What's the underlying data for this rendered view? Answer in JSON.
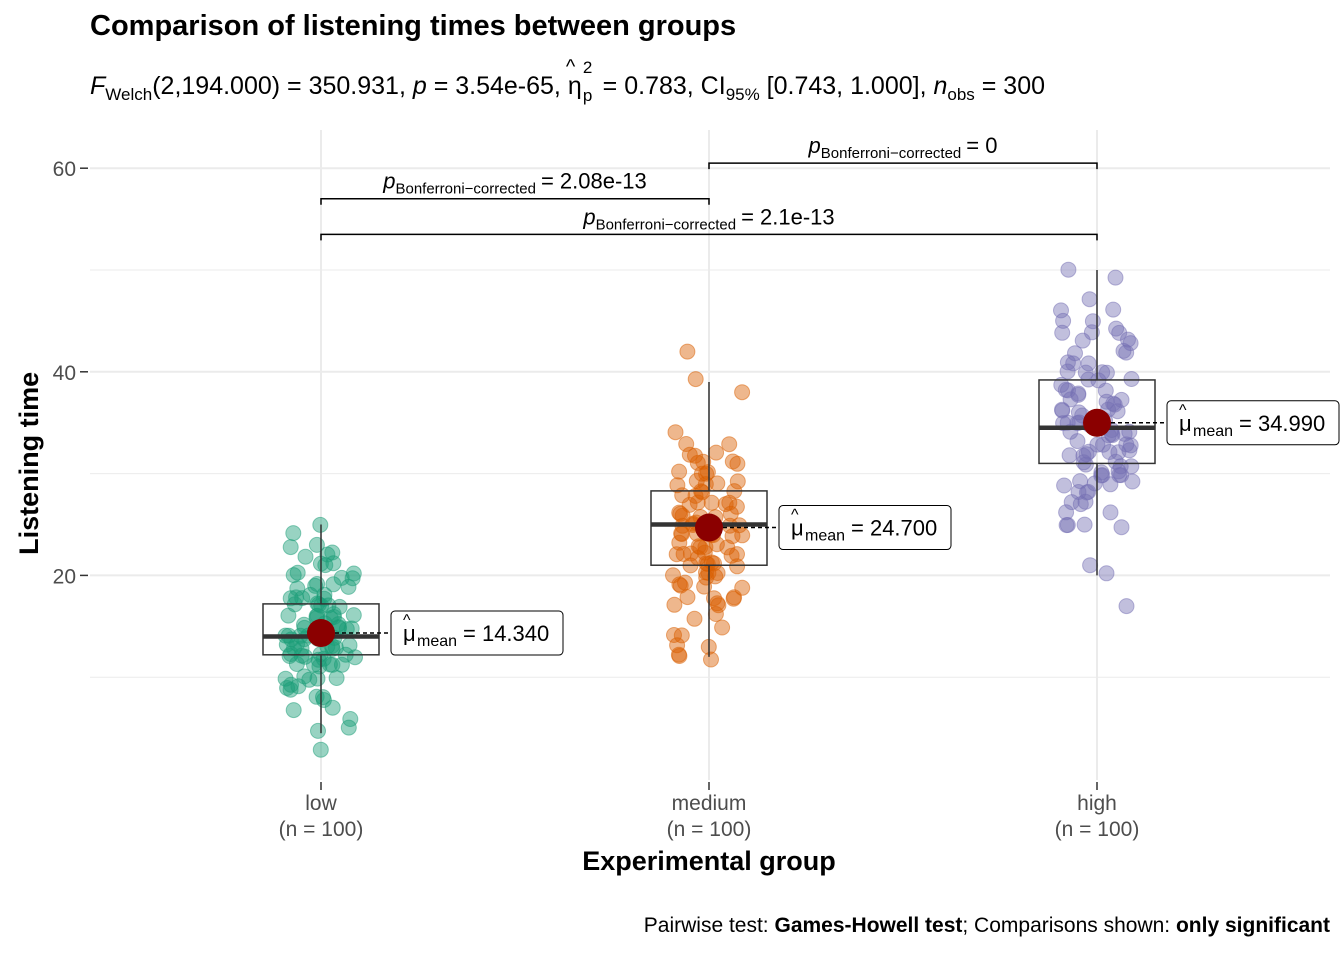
{
  "title": "Comparison of listening times between groups",
  "subtitle": {
    "F_symbol": "F",
    "F_sub": "Welch",
    "F_args": "(2,194.000) = 350.931, ",
    "p_symbol": "p",
    "p_value": " = 3.54e-65, ",
    "eta_symbol": "η",
    "eta_hat": "^",
    "eta_sup": "2",
    "eta_sub": "p",
    "eta_value": " = 0.783, CI",
    "ci_sub": "95%",
    "ci_value": " [0.743, 1.000], ",
    "n_symbol": "n",
    "n_sub": "obs",
    "n_value": " = 300"
  },
  "caption": {
    "prefix": "Pairwise test: ",
    "test": "Games-Howell test",
    "middle": "; Comparisons shown: ",
    "shown": "only significant"
  },
  "chart_data": {
    "type": "box-violin-scatter",
    "xlabel": "Experimental group",
    "ylabel": "Listening time",
    "ylim": [
      0,
      62
    ],
    "yticks": [
      20,
      40,
      60
    ],
    "grid": true,
    "categories": [
      "low",
      "medium",
      "high"
    ],
    "category_counts": [
      "(n = 100)",
      "(n = 100)",
      "(n = 100)"
    ],
    "colors": {
      "low": "#1b9e77",
      "medium": "#d95f02",
      "high": "#7570b3",
      "mean_point": "#8b0000",
      "grid": "#ebebeb"
    },
    "boxes": [
      {
        "group": "low",
        "q1": 12.2,
        "median": 14.0,
        "q3": 17.2,
        "whisker_low": 4.5,
        "whisker_high": 25.0
      },
      {
        "group": "medium",
        "q1": 21.0,
        "median": 25.0,
        "q3": 28.3,
        "whisker_low": 12.0,
        "whisker_high": 39.0
      },
      {
        "group": "high",
        "q1": 31.0,
        "median": 34.5,
        "q3": 39.2,
        "whisker_low": 20.0,
        "whisker_high": 50.0
      }
    ],
    "means": [
      {
        "group": "low",
        "value": 14.34,
        "label_symbol": "μ",
        "label_sub": "mean",
        "label_value": "= 14.340"
      },
      {
        "group": "medium",
        "value": 24.7,
        "label_symbol": "μ",
        "label_sub": "mean",
        "label_value": "= 24.700"
      },
      {
        "group": "high",
        "value": 34.99,
        "label_symbol": "μ",
        "label_sub": "mean",
        "label_value": "= 34.990"
      }
    ],
    "points": {
      "low": [
        25,
        24,
        23,
        23,
        22,
        22,
        22,
        21,
        21,
        21,
        20,
        20,
        20,
        20,
        19,
        19,
        19,
        19,
        18,
        18,
        18,
        18,
        18,
        17,
        17,
        17,
        17,
        17,
        16,
        16,
        16,
        16,
        16,
        16,
        15,
        15,
        15,
        15,
        15,
        15,
        15,
        14,
        14,
        14,
        14,
        14,
        14,
        14,
        14,
        13,
        13,
        13,
        13,
        13,
        13,
        13,
        13,
        12,
        12,
        12,
        12,
        12,
        12,
        12,
        11,
        11,
        11,
        11,
        11,
        10,
        10,
        10,
        10,
        10,
        9,
        9,
        9,
        9,
        8,
        8,
        8,
        7,
        7,
        6,
        5,
        5,
        3,
        20,
        18,
        16,
        14,
        12,
        13,
        15,
        17,
        19,
        14,
        12,
        11,
        16
      ],
      "medium": [
        42,
        39,
        38,
        34,
        33,
        32,
        32,
        32,
        31,
        31,
        31,
        30,
        30,
        30,
        29,
        29,
        29,
        29,
        28,
        28,
        28,
        28,
        27,
        27,
        27,
        27,
        27,
        26,
        26,
        26,
        26,
        26,
        25,
        25,
        25,
        25,
        25,
        25,
        24,
        24,
        24,
        24,
        24,
        24,
        23,
        23,
        23,
        23,
        23,
        22,
        22,
        22,
        22,
        22,
        22,
        21,
        21,
        21,
        21,
        21,
        20,
        20,
        20,
        20,
        20,
        19,
        19,
        19,
        19,
        18,
        18,
        18,
        17,
        17,
        17,
        16,
        16,
        15,
        14,
        14,
        13,
        13,
        12,
        12,
        12,
        22,
        24,
        26,
        28,
        30,
        21,
        23,
        25,
        27,
        29,
        20,
        19,
        31,
        33,
        18
      ],
      "high": [
        50,
        49,
        47,
        46,
        46,
        45,
        45,
        44,
        44,
        44,
        43,
        43,
        43,
        42,
        42,
        41,
        41,
        40,
        40,
        40,
        39,
        39,
        39,
        38,
        38,
        38,
        37,
        37,
        37,
        37,
        36,
        36,
        36,
        36,
        35,
        35,
        35,
        35,
        35,
        34,
        34,
        34,
        34,
        34,
        33,
        33,
        33,
        33,
        32,
        32,
        32,
        32,
        32,
        31,
        31,
        31,
        31,
        30,
        30,
        30,
        30,
        29,
        29,
        29,
        29,
        28,
        28,
        28,
        27,
        27,
        27,
        26,
        26,
        25,
        25,
        25,
        25,
        21,
        20,
        17,
        36,
        38,
        40,
        42,
        34,
        32,
        30,
        33,
        35,
        37,
        39,
        41,
        31,
        29,
        36,
        34,
        38,
        30,
        32,
        44
      ]
    },
    "comparisons": [
      {
        "from": "low",
        "to": "medium",
        "y": 57,
        "p_symbol": "p",
        "p_sub": "Bonferroni−corrected",
        "p_value": "= 2.08e-13"
      },
      {
        "from": "medium",
        "to": "high",
        "y": 60.5,
        "p_symbol": "p",
        "p_sub": "Bonferroni−corrected",
        "p_value": "= 0"
      },
      {
        "from": "low",
        "to": "high",
        "y": 53.5,
        "p_symbol": "p",
        "p_sub": "Bonferroni−corrected",
        "p_value": "= 2.1e-13"
      }
    ]
  }
}
